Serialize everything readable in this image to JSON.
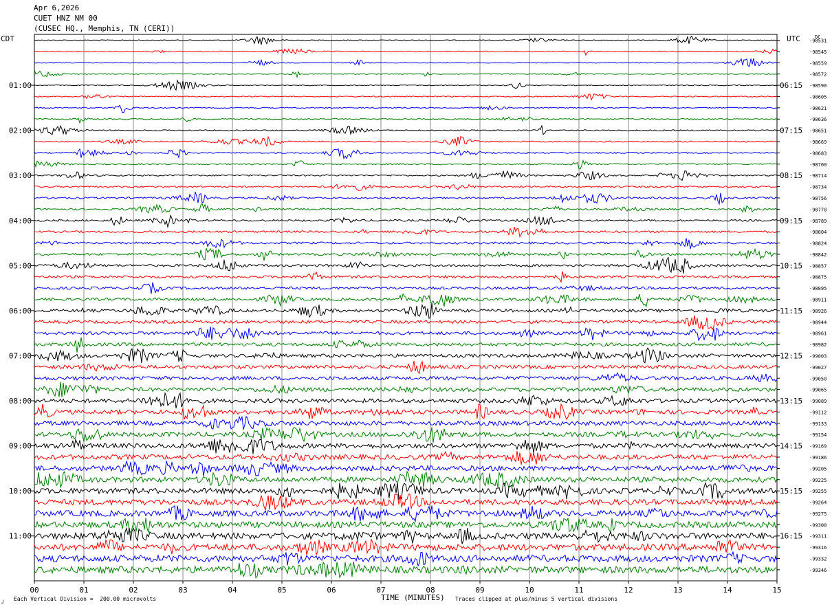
{
  "header": {
    "date": "Apr 6,2026",
    "station": "CUET HNZ NM 00",
    "location": "(CUSEC HQ., Memphis, TN (CERI))"
  },
  "left_tz": "CDT",
  "right_tz": "UTC",
  "footer": {
    "scale_note": "Each Vertical Division =  200.00 microvolts",
    "xlabel": "TIME (MINUTES)",
    "clip_note": "Traces clipped at plus/minus 5 vertical divisions",
    "corner_mark": "┘"
  },
  "chart_data": {
    "type": "line",
    "title": "",
    "xlabel": "TIME (MINUTES)",
    "xlim": [
      0,
      15
    ],
    "x_ticks": [
      "00",
      "01",
      "02",
      "03",
      "04",
      "05",
      "06",
      "07",
      "08",
      "09",
      "10",
      "11",
      "12",
      "13",
      "14",
      "15"
    ],
    "left_hour_labels": [
      "01:00",
      "02:00",
      "03:00",
      "04:00",
      "05:00",
      "06:00",
      "07:00",
      "08:00",
      "09:00",
      "10:00",
      "11:00"
    ],
    "right_hour_labels": [
      "06:15",
      "07:15",
      "08:15",
      "09:15",
      "10:15",
      "11:15",
      "12:15",
      "13:15",
      "14:15",
      "15:15",
      "16:15"
    ],
    "trace_colors": [
      "#000000",
      "#ff0000",
      "#0000ff",
      "#007f00"
    ],
    "trace_offsets": [
      "-98531",
      "-98545",
      "-98559",
      "-98572",
      "-98590",
      "-98605",
      "-98621",
      "-98636",
      "-98651",
      "-98669",
      "-98683",
      "-98700",
      "-98714",
      "-98734",
      "-98756",
      "-98770",
      "-98789",
      "-98804",
      "-98824",
      "-98842",
      "-98857",
      "-98875",
      "-98895",
      "-98911",
      "-98926",
      "-98944",
      "-98961",
      "-98982",
      "-99003",
      "-99027",
      "-99050",
      "-99065",
      "-99089",
      "-99112",
      "-99133",
      "-99154",
      "-99169",
      "-99186",
      "-99205",
      "-99225",
      "-99255",
      "-99264",
      "-99275",
      "-99300",
      "-99311",
      "-99316",
      "-99332",
      "-99346"
    ],
    "top_offset_label": "DC",
    "scale_microvolts_per_division": 200.0,
    "clip_divisions": 5
  }
}
